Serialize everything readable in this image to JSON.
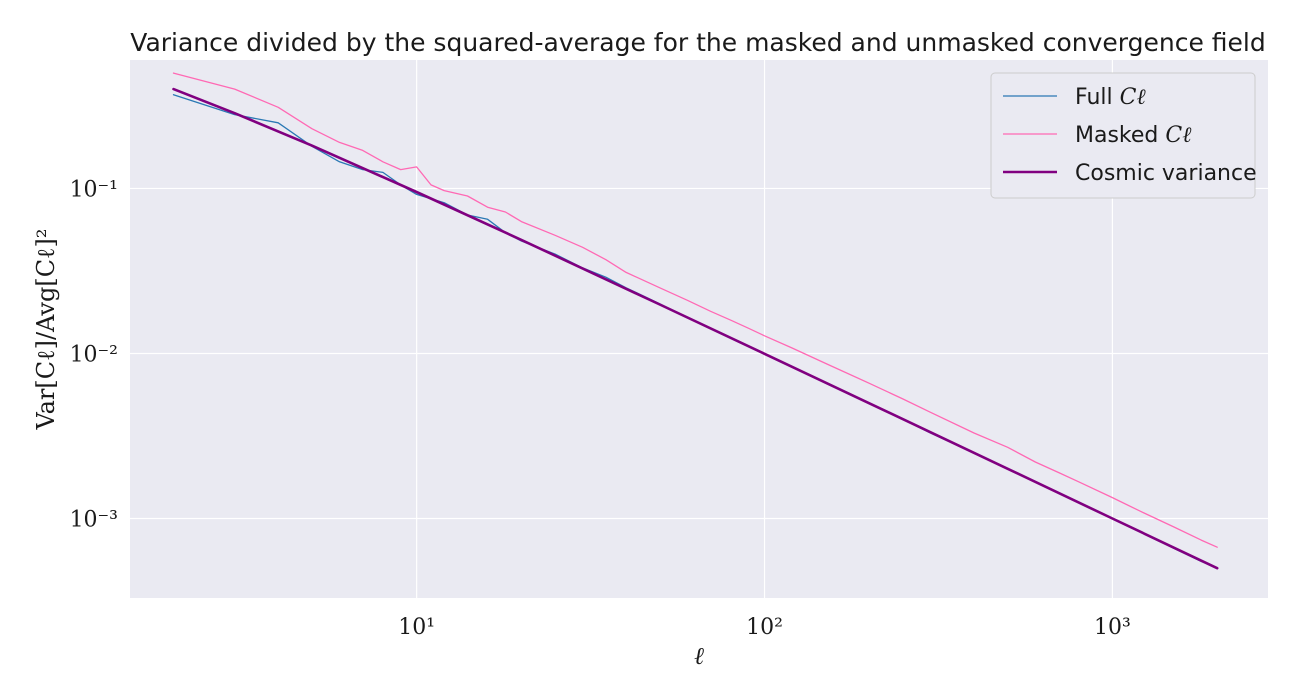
{
  "chart_data": {
    "type": "line",
    "title": "Variance divided by the squared-average for the masked and unmasked convergence field",
    "xlabel": "ℓ",
    "ylabel": "Var[Cℓ]/Avg[Cℓ]²",
    "xscale": "log",
    "yscale": "log",
    "xlim": [
      1.5,
      2800
    ],
    "ylim": [
      0.00033,
      0.6
    ],
    "grid": true,
    "legend_position": "top-right",
    "x_ticks": [
      {
        "value": 10,
        "label": "10¹"
      },
      {
        "value": 100,
        "label": "10²"
      },
      {
        "value": 1000,
        "label": "10³"
      }
    ],
    "y_ticks": [
      {
        "value": 0.001,
        "label": "10⁻³"
      },
      {
        "value": 0.01,
        "label": "10⁻²"
      },
      {
        "value": 0.1,
        "label": "10⁻¹"
      }
    ],
    "series": [
      {
        "name": "Full Cℓ",
        "legend_main": "Full ",
        "legend_sym": "Cℓ",
        "color": "#2a78b4",
        "width": 1.3,
        "x": [
          2,
          3,
          4,
          5,
          6,
          7,
          8,
          9,
          10,
          12,
          14,
          16,
          18,
          20,
          25,
          30,
          35,
          40,
          50,
          60,
          70,
          80,
          90,
          100,
          120,
          150,
          200,
          250,
          300,
          400,
          500,
          600,
          700,
          800,
          1000,
          1200,
          1500,
          1800,
          2000
        ],
        "y": [
          0.37,
          0.28,
          0.25,
          0.18,
          0.145,
          0.13,
          0.125,
          0.105,
          0.092,
          0.082,
          0.069,
          0.065,
          0.054,
          0.048,
          0.04,
          0.033,
          0.029,
          0.025,
          0.02,
          0.0165,
          0.0142,
          0.0124,
          0.0111,
          0.0099,
          0.0083,
          0.0066,
          0.005,
          0.004,
          0.0033,
          0.0025,
          0.002,
          0.00167,
          0.00143,
          0.00125,
          0.001,
          0.00083,
          0.00066,
          0.00055,
          0.0005
        ]
      },
      {
        "name": "Masked Cℓ",
        "legend_main": "Masked ",
        "legend_sym": "Cℓ",
        "color": "#ff69b4",
        "width": 1.3,
        "x": [
          2,
          3,
          4,
          5,
          6,
          7,
          8,
          9,
          10,
          11,
          12,
          14,
          16,
          18,
          20,
          25,
          30,
          35,
          40,
          50,
          60,
          70,
          80,
          90,
          100,
          120,
          150,
          200,
          250,
          300,
          400,
          500,
          600,
          700,
          800,
          1000,
          1200,
          1500,
          1800,
          2000
        ],
        "y": [
          0.5,
          0.4,
          0.31,
          0.23,
          0.19,
          0.17,
          0.145,
          0.13,
          0.135,
          0.105,
          0.097,
          0.09,
          0.077,
          0.072,
          0.063,
          0.052,
          0.044,
          0.037,
          0.031,
          0.025,
          0.021,
          0.018,
          0.0159,
          0.0142,
          0.0128,
          0.0108,
          0.0087,
          0.0066,
          0.0053,
          0.0044,
          0.0033,
          0.0027,
          0.0022,
          0.0019,
          0.00167,
          0.00134,
          0.00111,
          0.00089,
          0.00074,
          0.00067
        ]
      },
      {
        "name": "Cosmic variance",
        "legend_main": "Cosmic variance",
        "legend_sym": "",
        "color": "#800080",
        "width": 2.6,
        "x": [
          2,
          3,
          5,
          10,
          20,
          50,
          100,
          200,
          500,
          1000,
          2000
        ],
        "y": [
          0.4,
          0.2857,
          0.1818,
          0.0952,
          0.0488,
          0.0198,
          0.00995,
          0.00499,
          0.002,
          0.001,
          0.0005
        ]
      }
    ]
  }
}
